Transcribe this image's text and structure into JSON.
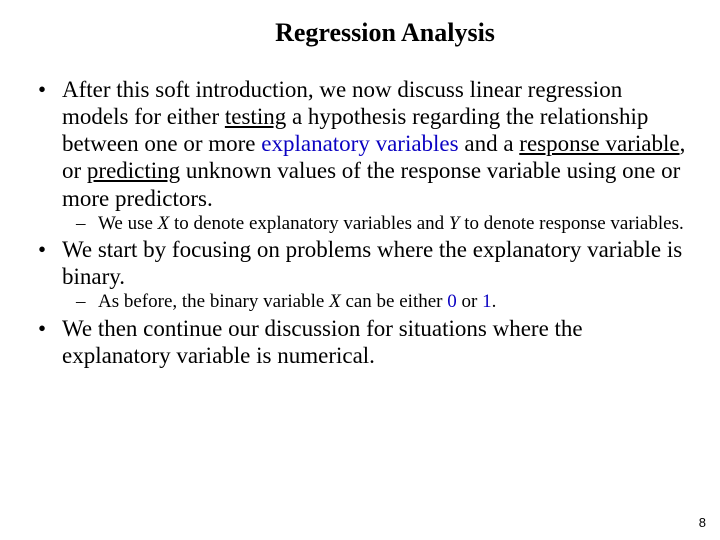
{
  "title": "Regression Analysis",
  "p1": {
    "t1": "After this soft introduction, we now discuss linear regression models for either ",
    "testing": "testing",
    "t2": " a hypothesis regarding the relationship between one or more ",
    "explv": "explanatory variables",
    "t3": " and a ",
    "respv": "response variable",
    "t4": ", or ",
    "predicting": "predicting",
    "t5": " unknown values of the response variable using one or more predictors."
  },
  "s1": {
    "t1": "We use ",
    "X": "X",
    "t2": " to denote explanatory variables and ",
    "Y": "Y",
    "t3": " to denote response variables."
  },
  "p2": "We start by focusing on problems where the explanatory variable is binary.",
  "s2": {
    "t1": "As before, the binary variable ",
    "X": "X",
    "t2": " can be either ",
    "zero": "0",
    "t3": " or ",
    "one": "1",
    "t4": "."
  },
  "p3": "We then continue our discussion for situations where the explanatory variable is numerical.",
  "page_number": "8",
  "colors": {
    "blue": "#0b02c2",
    "text": "#000000",
    "background": "#ffffff"
  },
  "typography": {
    "title_fontsize": 26,
    "body_fontsize": 23,
    "sub_fontsize": 19,
    "page_fontsize": 13,
    "font_family": "Times New Roman"
  }
}
